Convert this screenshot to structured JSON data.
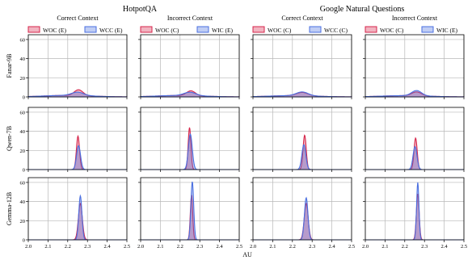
{
  "figure": {
    "xlabel": "AU",
    "group_titles": [
      "HotpotQA",
      "Google Natural Questions"
    ],
    "column_titles": [
      "Correct Context",
      "Incorrect Context",
      "Correct Context",
      "Incorrect Context"
    ],
    "row_labels": [
      "Fanar-9B",
      "Qwen-7B",
      "Gemma-12B"
    ],
    "legends": [
      [
        {
          "label": "WOC (E)",
          "color": "#d6264b"
        },
        {
          "label": "WCC (E)",
          "color": "#4a6fe0"
        }
      ],
      [
        {
          "label": "WOC (C)",
          "color": "#d6264b"
        },
        {
          "label": "WIC (E)",
          "color": "#4a6fe0"
        }
      ],
      [
        {
          "label": "WOC (C)",
          "color": "#d6264b"
        },
        {
          "label": "WCC (C)",
          "color": "#4a6fe0"
        }
      ],
      [
        {
          "label": "WOC (C)",
          "color": "#d6264b"
        },
        {
          "label": "WIC (E)",
          "color": "#4a6fe0"
        }
      ]
    ],
    "x_ticks": [
      "2.0",
      "2.1",
      "2.2",
      "2.3",
      "2.4",
      "2.5"
    ],
    "y_ticks": [
      "0",
      "20",
      "40",
      "60"
    ]
  },
  "chart_data": {
    "type": "area",
    "xlim": [
      2.0,
      2.5
    ],
    "ylim": [
      0,
      65
    ],
    "grid": true,
    "colors": {
      "woc": "#d6264b",
      "wcc": "#4a6fe0",
      "overlap": "#9b59b6"
    },
    "panels": [
      {
        "row": "Fanar-9B",
        "col": 0,
        "woc": {
          "mu": 2.255,
          "sigma": 0.022,
          "amp": 6,
          "base": 1.6
        },
        "wcc": {
          "mu": 2.25,
          "sigma": 0.03,
          "amp": 3.5,
          "base": 1.6
        }
      },
      {
        "row": "Fanar-9B",
        "col": 1,
        "woc": {
          "mu": 2.255,
          "sigma": 0.022,
          "amp": 5,
          "base": 1.5
        },
        "wcc": {
          "mu": 2.25,
          "sigma": 0.03,
          "amp": 3.5,
          "base": 1.5
        }
      },
      {
        "row": "Fanar-9B",
        "col": 2,
        "woc": {
          "mu": 2.25,
          "sigma": 0.03,
          "amp": 3.5,
          "base": 1.3
        },
        "wcc": {
          "mu": 2.25,
          "sigma": 0.03,
          "amp": 4,
          "base": 1.3
        }
      },
      {
        "row": "Fanar-9B",
        "col": 3,
        "woc": {
          "mu": 2.26,
          "sigma": 0.025,
          "amp": 4,
          "base": 1.3
        },
        "wcc": {
          "mu": 2.26,
          "sigma": 0.025,
          "amp": 5.5,
          "base": 1.3
        }
      },
      {
        "row": "Qwen-7B",
        "col": 0,
        "woc": {
          "mu": 2.252,
          "sigma": 0.008,
          "amp": 35,
          "base": 0
        },
        "wcc": {
          "mu": 2.255,
          "sigma": 0.01,
          "amp": 25,
          "base": 0
        }
      },
      {
        "row": "Qwen-7B",
        "col": 1,
        "woc": {
          "mu": 2.248,
          "sigma": 0.007,
          "amp": 44,
          "base": 0
        },
        "wcc": {
          "mu": 2.252,
          "sigma": 0.01,
          "amp": 37,
          "base": 0
        }
      },
      {
        "row": "Qwen-7B",
        "col": 2,
        "woc": {
          "mu": 2.262,
          "sigma": 0.008,
          "amp": 36,
          "base": 0
        },
        "wcc": {
          "mu": 2.258,
          "sigma": 0.01,
          "amp": 26,
          "base": 0
        }
      },
      {
        "row": "Qwen-7B",
        "col": 3,
        "woc": {
          "mu": 2.255,
          "sigma": 0.008,
          "amp": 33,
          "base": 0
        },
        "wcc": {
          "mu": 2.252,
          "sigma": 0.01,
          "amp": 24,
          "base": 0
        }
      },
      {
        "row": "Gemma-12B",
        "col": 0,
        "woc": {
          "mu": 2.264,
          "sigma": 0.01,
          "amp": 38,
          "base": 0
        },
        "wcc": {
          "mu": 2.264,
          "sigma": 0.008,
          "amp": 46,
          "base": 0
        }
      },
      {
        "row": "Gemma-12B",
        "col": 1,
        "woc": {
          "mu": 2.258,
          "sigma": 0.006,
          "amp": 47,
          "base": 0
        },
        "wcc": {
          "mu": 2.262,
          "sigma": 0.007,
          "amp": 61,
          "base": 0
        }
      },
      {
        "row": "Gemma-12B",
        "col": 2,
        "woc": {
          "mu": 2.27,
          "sigma": 0.01,
          "amp": 38,
          "base": 0
        },
        "wcc": {
          "mu": 2.27,
          "sigma": 0.009,
          "amp": 44,
          "base": 0
        }
      },
      {
        "row": "Gemma-12B",
        "col": 3,
        "woc": {
          "mu": 2.266,
          "sigma": 0.007,
          "amp": 48,
          "base": 0
        },
        "wcc": {
          "mu": 2.266,
          "sigma": 0.006,
          "amp": 60,
          "base": 0
        }
      }
    ]
  }
}
